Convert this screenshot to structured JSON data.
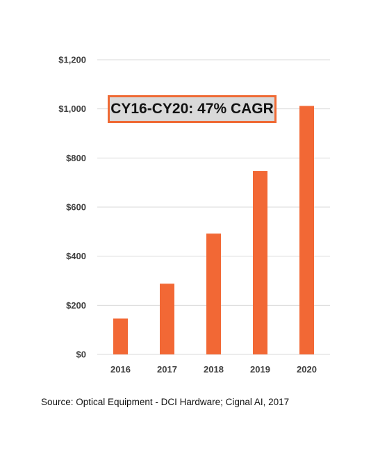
{
  "chart_data": {
    "type": "bar",
    "title": "",
    "xlabel": "",
    "ylabel": "",
    "categories": [
      "2016",
      "2017",
      "2018",
      "2019",
      "2020"
    ],
    "values": [
      146,
      288,
      492,
      747,
      1012
    ],
    "ylim": [
      0,
      1200
    ],
    "yticks": [
      0,
      200,
      400,
      600,
      800,
      1000,
      1200
    ],
    "ytick_labels": [
      "$0",
      "$200",
      "$400",
      "$600",
      "$800",
      "$1,000",
      "$1,200"
    ],
    "grid": true,
    "legend": "none",
    "bar_color": "#f26835",
    "grid_color": "#d9d9d9",
    "annotation": "CY16-CY20: 47% CAGR"
  },
  "colors": {
    "accent": "#f26835",
    "annotation_border": "#ef6a35",
    "annotation_fill": "#d9d9d9"
  },
  "source_text": "Source: Optical Equipment - DCI Hardware; Cignal AI, 2017"
}
